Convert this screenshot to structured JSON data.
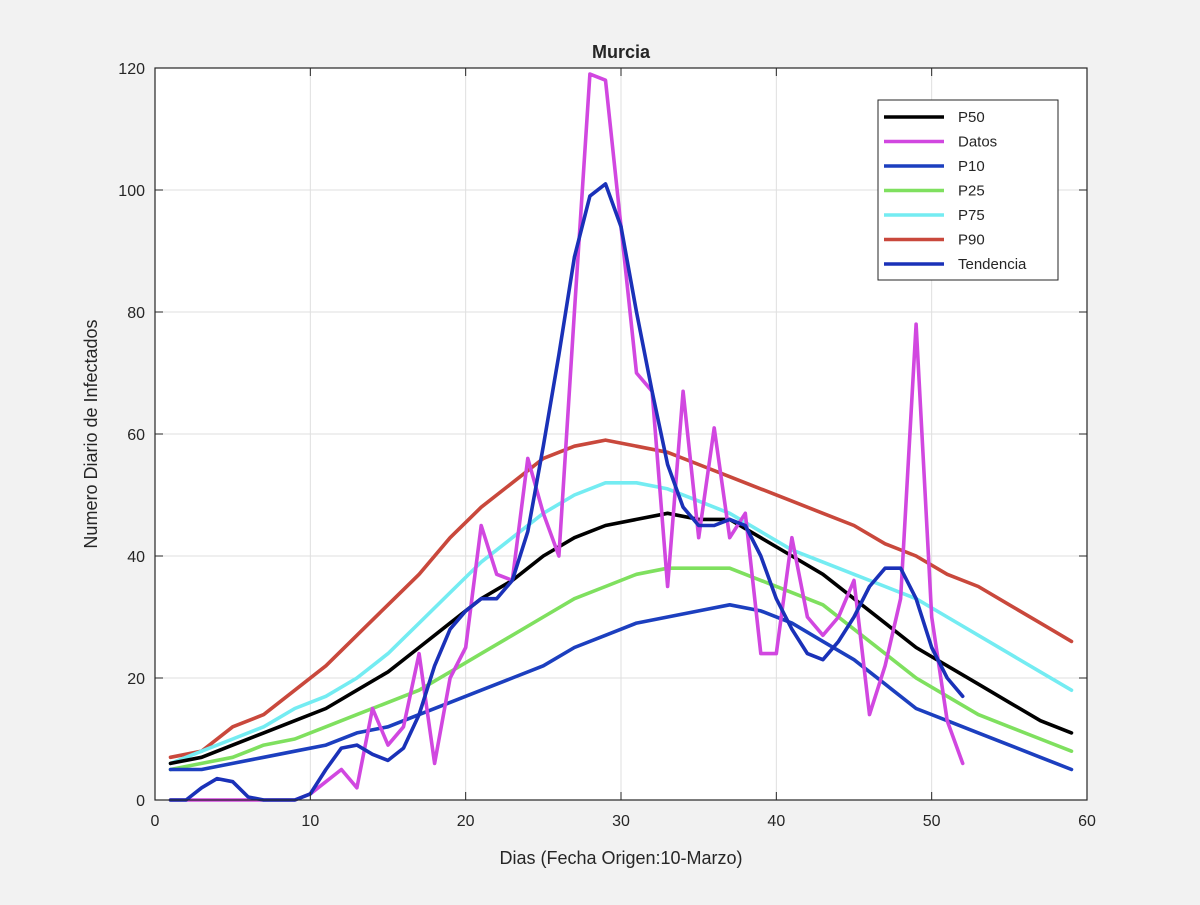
{
  "chart_data": {
    "type": "line",
    "title": "Murcia",
    "xlabel": "Dias (Fecha Origen:10-Marzo)",
    "ylabel": "Numero Diario de Infectados",
    "xlim": [
      0,
      60
    ],
    "ylim": [
      0,
      120
    ],
    "xticks": [
      0,
      10,
      20,
      30,
      40,
      50,
      60
    ],
    "yticks": [
      0,
      20,
      40,
      60,
      80,
      100,
      120
    ],
    "grid": true,
    "legend_position": "top-right",
    "series": [
      {
        "name": "P50",
        "color": "#000000",
        "x": [
          1,
          3,
          5,
          7,
          9,
          11,
          13,
          15,
          17,
          19,
          21,
          23,
          25,
          27,
          29,
          31,
          33,
          35,
          37,
          39,
          41,
          43,
          45,
          47,
          49,
          51,
          53,
          55,
          57,
          59
        ],
        "y": [
          6,
          7,
          9,
          11,
          13,
          15,
          18,
          21,
          25,
          29,
          33,
          36,
          40,
          43,
          45,
          46,
          47,
          46,
          46,
          43,
          40,
          37,
          33,
          29,
          25,
          22,
          19,
          16,
          13,
          11
        ]
      },
      {
        "name": " Datos",
        "color": "#d147e0",
        "x": [
          1,
          2,
          3,
          4,
          5,
          6,
          7,
          8,
          9,
          10,
          11,
          12,
          13,
          14,
          15,
          16,
          17,
          18,
          19,
          20,
          21,
          22,
          23,
          24,
          25,
          26,
          27,
          28,
          29,
          30,
          31,
          32,
          33,
          34,
          35,
          36,
          37,
          38,
          39,
          40,
          41,
          42,
          43,
          44,
          45,
          46,
          47,
          48,
          49,
          50,
          51,
          52
        ],
        "y": [
          0,
          0,
          0,
          0,
          0,
          0,
          0,
          0,
          0,
          1,
          3,
          5,
          2,
          15,
          9,
          12,
          24,
          6,
          20,
          25,
          45,
          37,
          36,
          56,
          47,
          40,
          80,
          119,
          118,
          94,
          70,
          67,
          35,
          67,
          43,
          61,
          43,
          47,
          24,
          24,
          43,
          30,
          27,
          30,
          36,
          14,
          22,
          33,
          78,
          30,
          13,
          6
        ]
      },
      {
        "name": "P10",
        "color": "#1c3fbf",
        "x": [
          1,
          3,
          5,
          7,
          9,
          11,
          13,
          15,
          17,
          19,
          21,
          23,
          25,
          27,
          29,
          31,
          33,
          35,
          37,
          39,
          41,
          43,
          45,
          47,
          49,
          51,
          53,
          55,
          57,
          59
        ],
        "y": [
          5,
          5,
          6,
          7,
          8,
          9,
          11,
          12,
          14,
          16,
          18,
          20,
          22,
          25,
          27,
          29,
          30,
          31,
          32,
          31,
          29,
          26,
          23,
          19,
          15,
          13,
          11,
          9,
          7,
          5
        ]
      },
      {
        "name": "P25",
        "color": "#7fe05f",
        "x": [
          1,
          3,
          5,
          7,
          9,
          11,
          13,
          15,
          17,
          19,
          21,
          23,
          25,
          27,
          29,
          31,
          33,
          35,
          37,
          39,
          41,
          43,
          45,
          47,
          49,
          51,
          53,
          55,
          57,
          59
        ],
        "y": [
          5,
          6,
          7,
          9,
          10,
          12,
          14,
          16,
          18,
          21,
          24,
          27,
          30,
          33,
          35,
          37,
          38,
          38,
          38,
          36,
          34,
          32,
          28,
          24,
          20,
          17,
          14,
          12,
          10,
          8
        ]
      },
      {
        "name": "P75",
        "color": "#74ecf2",
        "x": [
          1,
          3,
          5,
          7,
          9,
          11,
          13,
          15,
          17,
          19,
          21,
          23,
          25,
          27,
          29,
          31,
          33,
          35,
          37,
          39,
          41,
          43,
          45,
          47,
          49,
          51,
          53,
          55,
          57,
          59
        ],
        "y": [
          6,
          8,
          10,
          12,
          15,
          17,
          20,
          24,
          29,
          34,
          39,
          43,
          47,
          50,
          52,
          52,
          51,
          49,
          47,
          44,
          41,
          39,
          37,
          35,
          33,
          30,
          27,
          24,
          21,
          18
        ]
      },
      {
        "name": "P90",
        "color": "#c9483c",
        "x": [
          1,
          3,
          5,
          7,
          9,
          11,
          13,
          15,
          17,
          19,
          21,
          23,
          25,
          27,
          29,
          31,
          33,
          35,
          37,
          39,
          41,
          43,
          45,
          47,
          49,
          51,
          53,
          55,
          57,
          59
        ],
        "y": [
          7,
          8,
          12,
          14,
          18,
          22,
          27,
          32,
          37,
          43,
          48,
          52,
          56,
          58,
          59,
          58,
          57,
          55,
          53,
          51,
          49,
          47,
          45,
          42,
          40,
          37,
          35,
          32,
          29,
          26
        ]
      },
      {
        "name": "Tendencia",
        "color": "#1a31b8",
        "x": [
          1,
          2,
          3,
          4,
          5,
          6,
          7,
          8,
          9,
          10,
          11,
          12,
          13,
          14,
          15,
          16,
          17,
          18,
          19,
          20,
          21,
          22,
          23,
          24,
          25,
          26,
          27,
          28,
          29,
          30,
          31,
          32,
          33,
          34,
          35,
          36,
          37,
          38,
          39,
          40,
          41,
          42,
          43,
          44,
          45,
          46,
          47,
          48,
          49,
          50,
          51,
          52
        ],
        "y": [
          0,
          0,
          2,
          3.5,
          3,
          0.5,
          0,
          0,
          0,
          1,
          5,
          8.5,
          9,
          7.5,
          6.5,
          8.5,
          14,
          22,
          28,
          31,
          33,
          33,
          36,
          44,
          58,
          73,
          89,
          99,
          101,
          94,
          80,
          67,
          55,
          48,
          45,
          45,
          46,
          45,
          40,
          33,
          28,
          24,
          23,
          26,
          30,
          35,
          38,
          38,
          33,
          25,
          20,
          17
        ]
      }
    ]
  }
}
